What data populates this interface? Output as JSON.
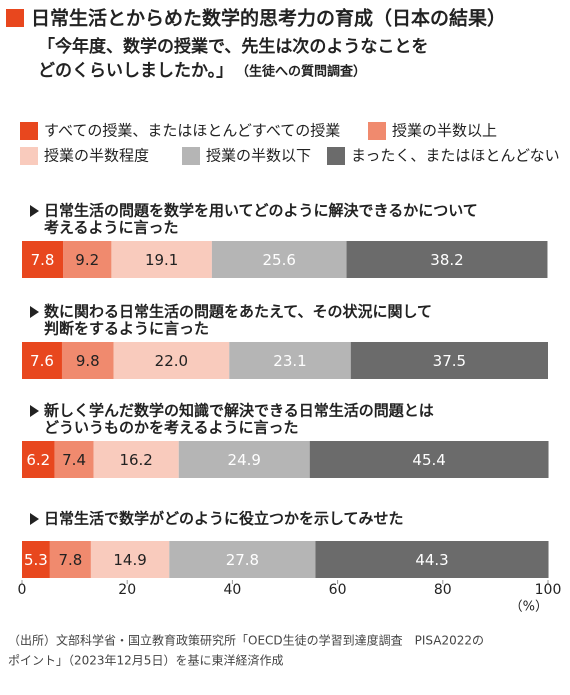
{
  "chart_data": {
    "type": "stacked-bar-horizontal",
    "title": "日常生活とからめた数学的思考力の育成（日本の結果）",
    "subtitle": [
      "「今年度、数学の授業で、先生は次のようなことを",
      "どのくらいしましたか。」"
    ],
    "subtitle_note": "（生徒への質問調査）",
    "categories": [
      [
        "日常生活の問題を数学を用いてどのように解決できるかについて",
        "考えるように言った"
      ],
      [
        "数に関わる日常生活の問題をあたえて、その状況に関して",
        "判断をするように言った"
      ],
      [
        "新しく学んだ数学の知識で解決できる日常生活の問題とは",
        "どういうものかを考えるように言った"
      ],
      [
        "日常生活で数学がどのように役立つかを示してみせた"
      ]
    ],
    "series": [
      {
        "name": "すべての授業、またはほとんどすべての授業",
        "color": "#e8471e",
        "values": [
          7.8,
          7.6,
          6.2,
          5.3
        ],
        "value_labels": [
          "7.8",
          "7.6",
          "6.2",
          "5.3"
        ]
      },
      {
        "name": "授業の半数以上",
        "color": "#f08a6e",
        "values": [
          9.2,
          9.8,
          7.4,
          7.8
        ],
        "value_labels": [
          "9.2",
          "9.8",
          "7.4",
          "7.8"
        ]
      },
      {
        "name": "授業の半数程度",
        "color": "#f9cbbd",
        "values": [
          19.1,
          22.0,
          16.2,
          14.9
        ],
        "value_labels": [
          "19.1",
          "22.0",
          "16.2",
          "14.9"
        ]
      },
      {
        "name": "授業の半数以下",
        "color": "#b5b5b5",
        "values": [
          25.6,
          23.1,
          24.9,
          27.8
        ],
        "value_labels": [
          "25.6",
          "23.1",
          "24.9",
          "27.8"
        ]
      },
      {
        "name": "まったく、またはほとんどない",
        "color": "#6b6b6b",
        "values": [
          38.2,
          37.5,
          45.4,
          44.3
        ],
        "value_labels": [
          "38.2",
          "37.5",
          "45.4",
          "44.3"
        ]
      }
    ],
    "xlim": [
      0,
      100
    ],
    "xticks": [
      0,
      20,
      40,
      60,
      80,
      100
    ],
    "x_unit": "（%）",
    "source": [
      "（出所）文部科学省・国立教育政策研究所「OECD生徒の学習到達度調査　PISA2022の",
      "ポイント」（2023年12月5日）を基に東洋経済作成"
    ]
  }
}
